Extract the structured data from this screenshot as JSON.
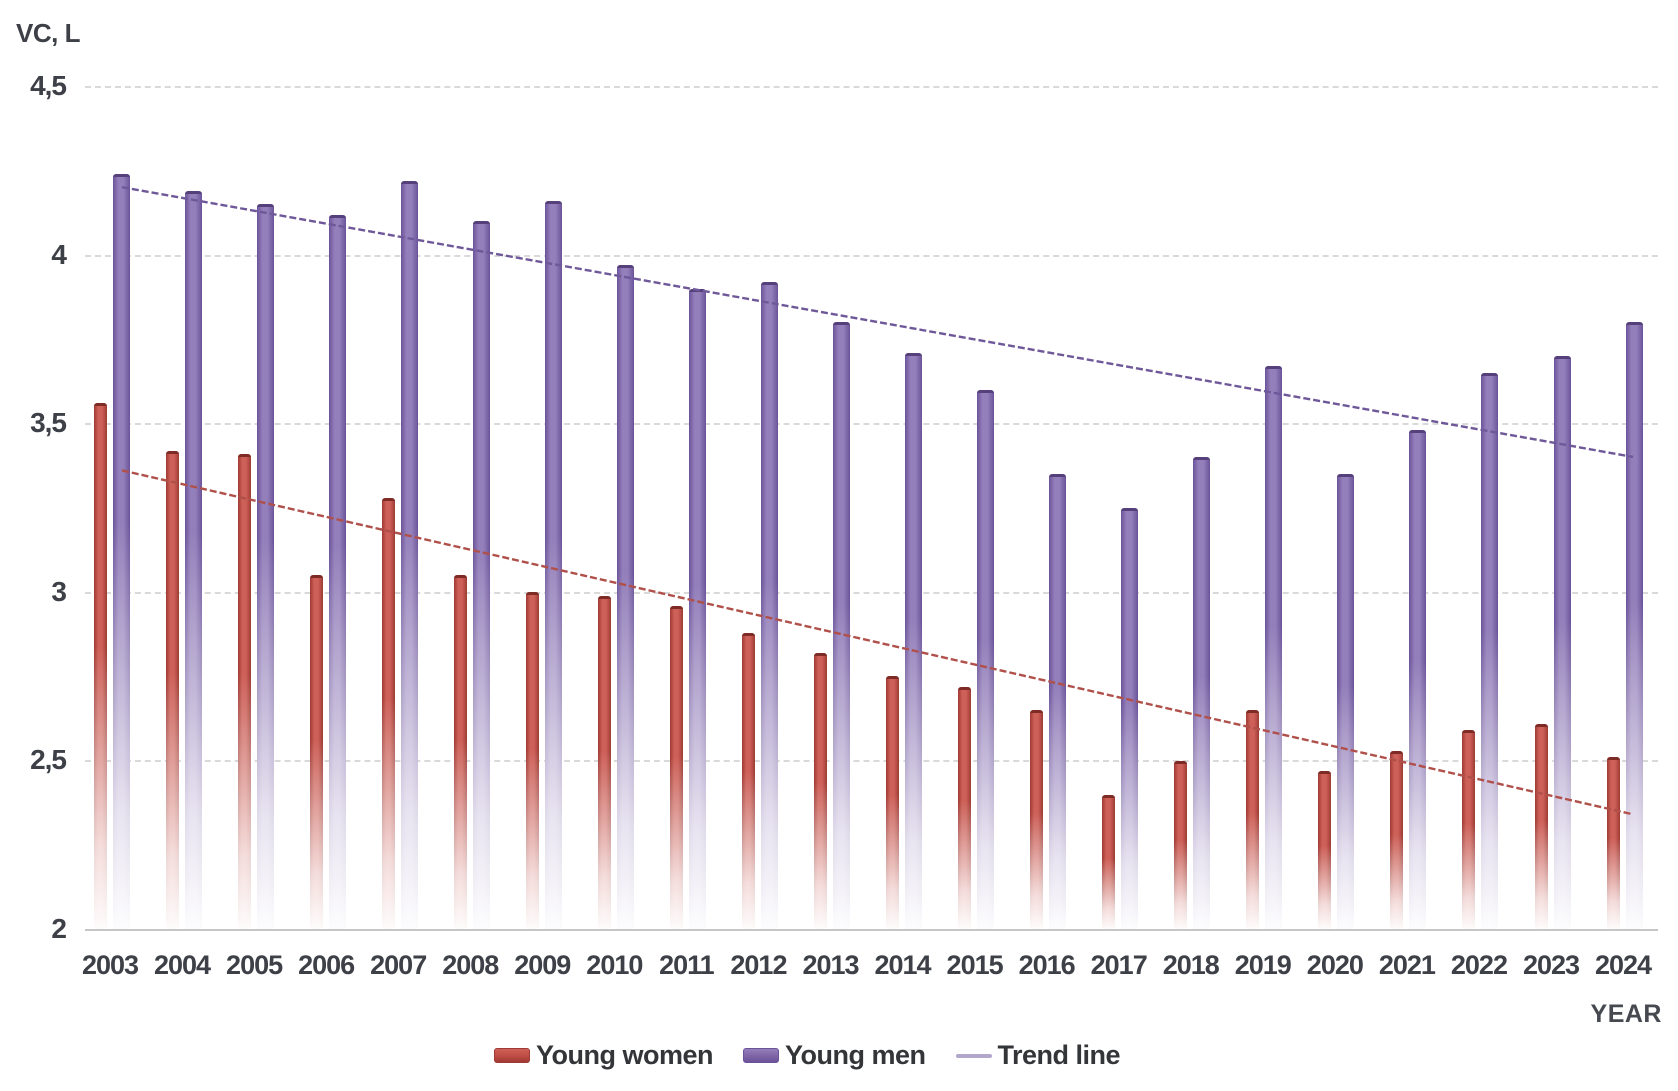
{
  "page": {
    "background": "#ffffff"
  },
  "chart_data": {
    "type": "bar",
    "title": "",
    "ylabel": "VC, L",
    "xlabel": "YEAR",
    "ylim": [
      2,
      4.5
    ],
    "grid": "horizontal-dashed",
    "legend_position": "bottom-center",
    "categories": [
      "2003",
      "2004",
      "2005",
      "2006",
      "2007",
      "2008",
      "2009",
      "2010",
      "2011",
      "2012",
      "2013",
      "2014",
      "2015",
      "2016",
      "2017",
      "2018",
      "2019",
      "2020",
      "2021",
      "2022",
      "2023",
      "2024"
    ],
    "y_ticks": [
      {
        "label": "4,5",
        "value": 4.5
      },
      {
        "label": "4",
        "value": 4.0
      },
      {
        "label": "3,5",
        "value": 3.5
      },
      {
        "label": "3",
        "value": 3.0
      },
      {
        "label": "2,5",
        "value": 2.5
      },
      {
        "label": "2",
        "value": 2.0
      }
    ],
    "series": [
      {
        "name": "Young women",
        "color": "#bf4c44",
        "color_edge": "#9e3a33",
        "color_light": "#cd6058",
        "color_cap": "#7e2a25",
        "values": [
          3.55,
          3.41,
          3.4,
          3.04,
          3.27,
          3.04,
          2.99,
          2.98,
          2.95,
          2.87,
          2.81,
          2.74,
          2.71,
          2.64,
          2.39,
          2.49,
          2.64,
          2.46,
          2.52,
          2.58,
          2.6,
          2.5
        ]
      },
      {
        "name": "Young men",
        "color": "#7e63a5",
        "color_edge": "#6b539a",
        "color_light": "#937fba",
        "color_cap": "#55407c",
        "values": [
          4.23,
          4.18,
          4.14,
          4.11,
          4.21,
          4.09,
          4.15,
          3.96,
          3.89,
          3.91,
          3.79,
          3.7,
          3.59,
          3.34,
          3.24,
          3.39,
          3.66,
          3.34,
          3.47,
          3.64,
          3.69,
          3.79
        ]
      }
    ],
    "trend_lines": [
      {
        "name": "Trend line (young women)",
        "color": "#b0504a",
        "start": 3.36,
        "end": 2.34
      },
      {
        "name": "Trend line (young men)",
        "color": "#6e5899",
        "start": 4.2,
        "end": 3.4
      }
    ],
    "legend": [
      {
        "label": "Young women",
        "swatch": "bar",
        "series": 0
      },
      {
        "label": "Young men",
        "swatch": "bar",
        "series": 1
      },
      {
        "label": "Trend line",
        "swatch": "line",
        "color": "#b3a6cc"
      }
    ]
  }
}
